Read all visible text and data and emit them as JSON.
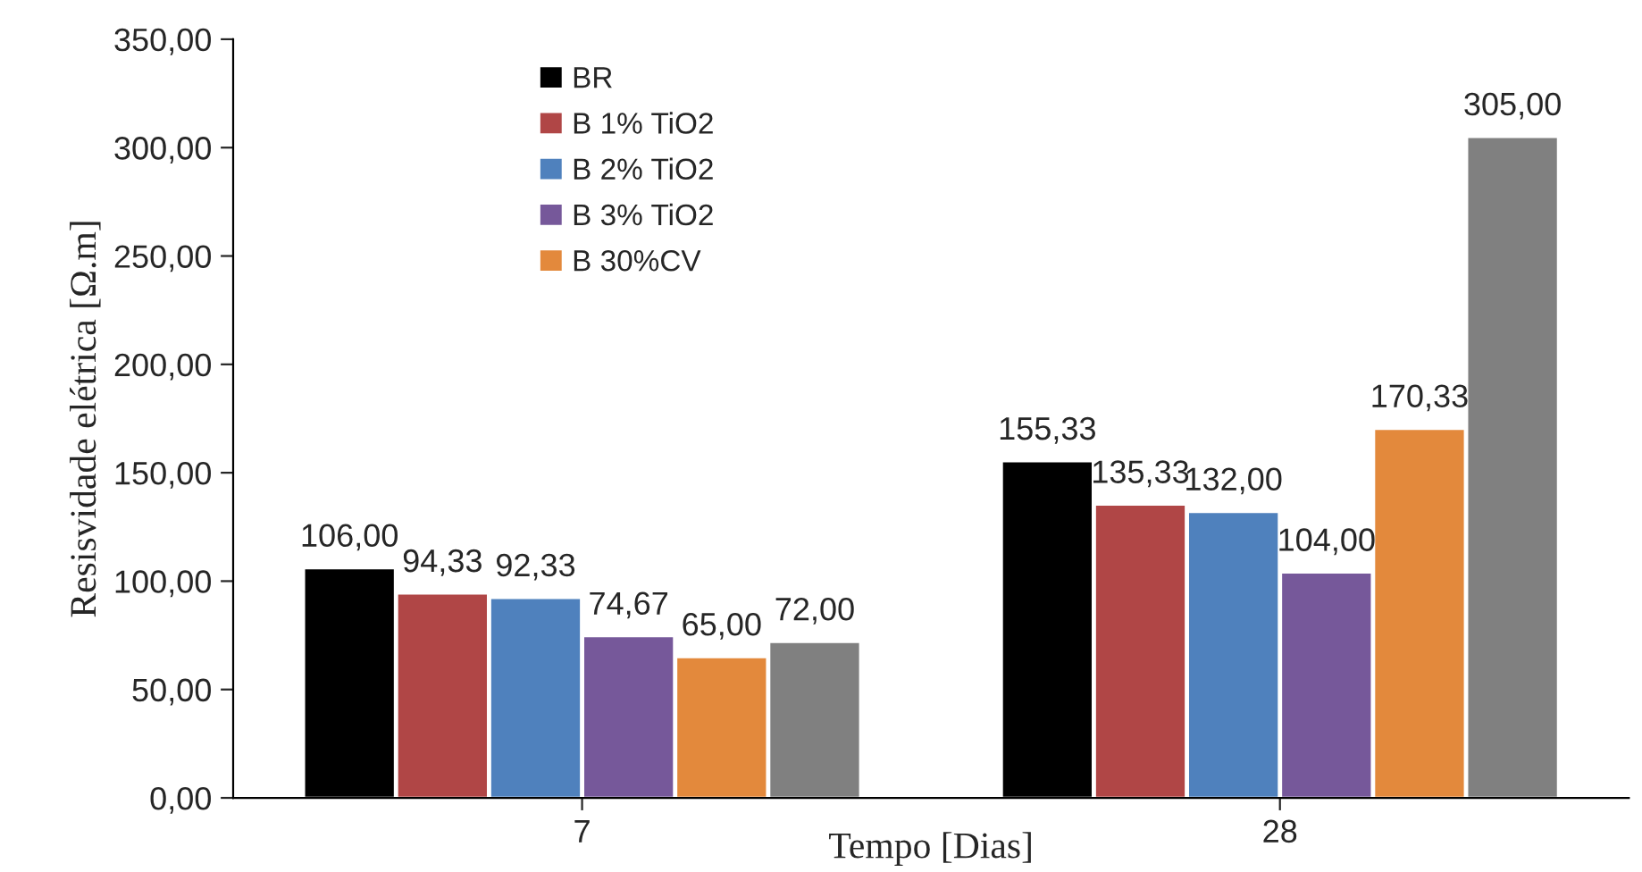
{
  "chart_data": {
    "type": "bar",
    "xlabel": "Tempo [Dias]",
    "ylabel": "Resisvidade elétrica [Ω.m]",
    "categories": [
      "7",
      "28"
    ],
    "series": [
      {
        "name": "BR",
        "color": "#000000",
        "values": [
          106.0,
          155.33
        ],
        "value_labels": [
          "106,00",
          "155,33"
        ]
      },
      {
        "name": "B 1% TiO2",
        "color": "#b04646",
        "values": [
          94.33,
          135.33
        ],
        "value_labels": [
          "94,33",
          "135,33"
        ]
      },
      {
        "name": "B 2% TiO2",
        "color": "#4f81bd",
        "values": [
          92.33,
          132.0
        ],
        "value_labels": [
          "92,33",
          "132,00"
        ]
      },
      {
        "name": "B 3% TiO2",
        "color": "#76589a",
        "values": [
          74.67,
          104.0
        ],
        "value_labels": [
          "74,67",
          "104,00"
        ]
      },
      {
        "name": "B 30%CV",
        "color": "#e3893c",
        "values": [
          65.0,
          170.33
        ],
        "value_labels": [
          "65,00",
          "170,33"
        ]
      },
      {
        "color": "#808080",
        "values": [
          72.0,
          305.0
        ],
        "value_labels": [
          "72,00",
          "305,00"
        ]
      }
    ],
    "ylim": [
      0,
      350
    ],
    "yticks": [
      {
        "value": 0,
        "label": "0,00"
      },
      {
        "value": 50,
        "label": "50,00"
      },
      {
        "value": 100,
        "label": "100,00"
      },
      {
        "value": 150,
        "label": "150,00"
      },
      {
        "value": 200,
        "label": "200,00"
      },
      {
        "value": 250,
        "label": "250,00"
      },
      {
        "value": 300,
        "label": "300,00"
      },
      {
        "value": 350,
        "label": "350,00"
      }
    ],
    "grid": false,
    "legend": "top left"
  }
}
